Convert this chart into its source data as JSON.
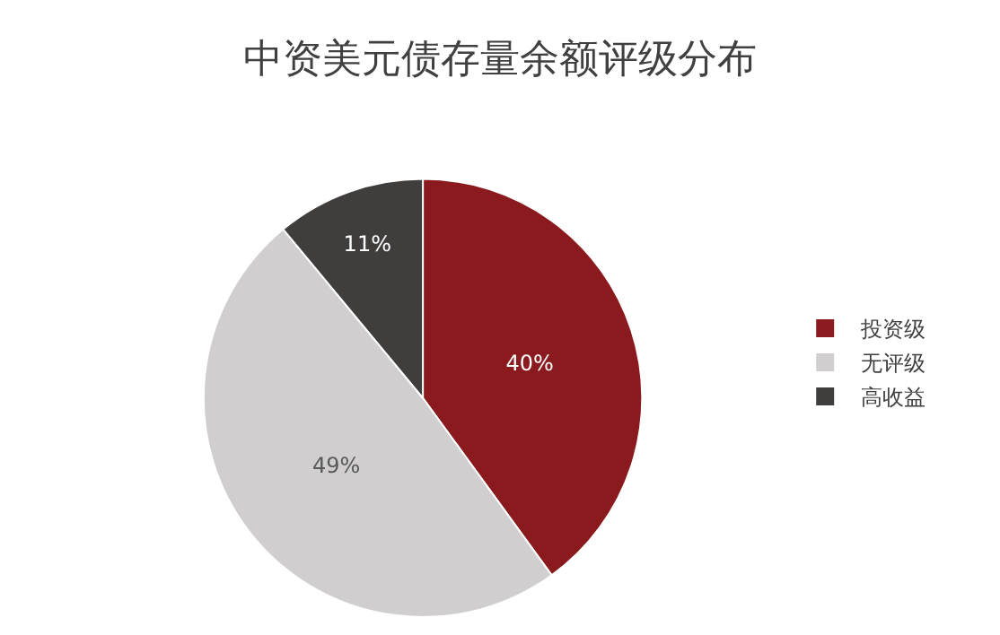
{
  "chart_data": {
    "type": "pie",
    "title": "中资美元债存量余额评级分布",
    "categories": [
      "投资级",
      "无评级",
      "高收益"
    ],
    "values": [
      40,
      49,
      11
    ],
    "value_labels": [
      "40%",
      "49%",
      "11%"
    ],
    "colors": [
      "#8b1a1f",
      "#d0cece",
      "#403d3d"
    ],
    "legend": "right"
  }
}
